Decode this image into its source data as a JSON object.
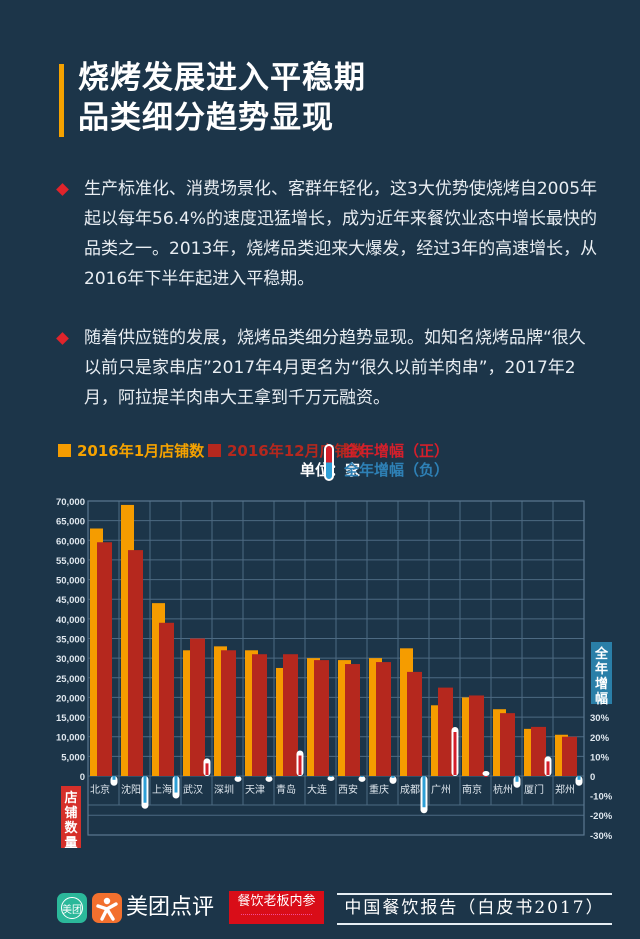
{
  "header": {
    "title_line1": "烧烤发展进入平稳期",
    "title_line2": "品类细分趋势显现",
    "accent_color": "#f5a200"
  },
  "bullets": [
    {
      "text": "生产标准化、消费场景化、客群年轻化，这3大优势使烧烤自2005年起以每年56.4%的速度迅猛增长，成为近年来餐饮业态中增长最快的品类之一。2013年，烧烤品类迎来大爆发，经过3年的高速增长，从2016年下半年起进入平稳期。"
    },
    {
      "text": "随着供应链的发展，烧烤品类细分趋势显现。如知名烧烤品牌“很久以前只是家串店”2017年4月更名为“很久以前羊肉串”，2017年2月，阿拉提羊肉串大王拿到千万元融资。"
    }
  ],
  "legend": {
    "jan": "2016年1月店铺数",
    "dec": "2016年12月店铺数",
    "unit": "单位：家",
    "pos": "全年增幅（正）",
    "neg": "全年增幅（负）"
  },
  "chart_data": {
    "type": "bar",
    "title": "",
    "xlabel": "",
    "ylabel": "店铺数量",
    "y2label": "全年增幅",
    "unit": "家",
    "categories": [
      "北京",
      "沈阳",
      "上海",
      "武汉",
      "深圳",
      "天津",
      "青岛",
      "大连",
      "西安",
      "重庆",
      "成都",
      "广州",
      "南京",
      "杭州",
      "厦门",
      "郑州"
    ],
    "series": [
      {
        "name": "2016年1月店铺数",
        "color": "#f59c00",
        "values": [
          63000,
          69000,
          44000,
          32000,
          33000,
          32000,
          27500,
          30000,
          29500,
          30000,
          32500,
          18000,
          20000,
          17000,
          12000,
          10500
        ]
      },
      {
        "name": "2016年12月店铺数",
        "color": "#b5281e",
        "values": [
          59500,
          57500,
          39000,
          35000,
          32000,
          31000,
          31000,
          29500,
          28500,
          29000,
          26500,
          22500,
          20500,
          16000,
          12500,
          10000
        ]
      },
      {
        "name": "全年增幅",
        "axis": "right",
        "unit": "%",
        "pos_color": "#d41f2b",
        "neg_color": "#2e9fd6",
        "values": [
          -5,
          -16.7,
          -11.5,
          9,
          -3,
          -3,
          13,
          -2,
          -3,
          -4,
          -19,
          25,
          2,
          -6,
          10,
          -5
        ]
      }
    ],
    "ylim": [
      0,
      70000
    ],
    "y_ticks": [
      "0",
      "5,000",
      "10,000",
      "15,000",
      "20,000",
      "25,000",
      "30,000",
      "35,000",
      "40,000",
      "45,000",
      "50,000",
      "55,000",
      "60,000",
      "65,000",
      "70,000"
    ],
    "y2lim": [
      -30,
      30
    ],
    "y2_ticks": [
      "-30%",
      "-20%",
      "-10%",
      "0",
      "10%",
      "20%",
      "30%"
    ],
    "grid": true,
    "legend_position": "top"
  },
  "footer": {
    "app_icon_label": "美团",
    "brand": "美团点评",
    "partner": "餐饮老板内参",
    "report": "中国餐饮报告（白皮书2017）"
  }
}
